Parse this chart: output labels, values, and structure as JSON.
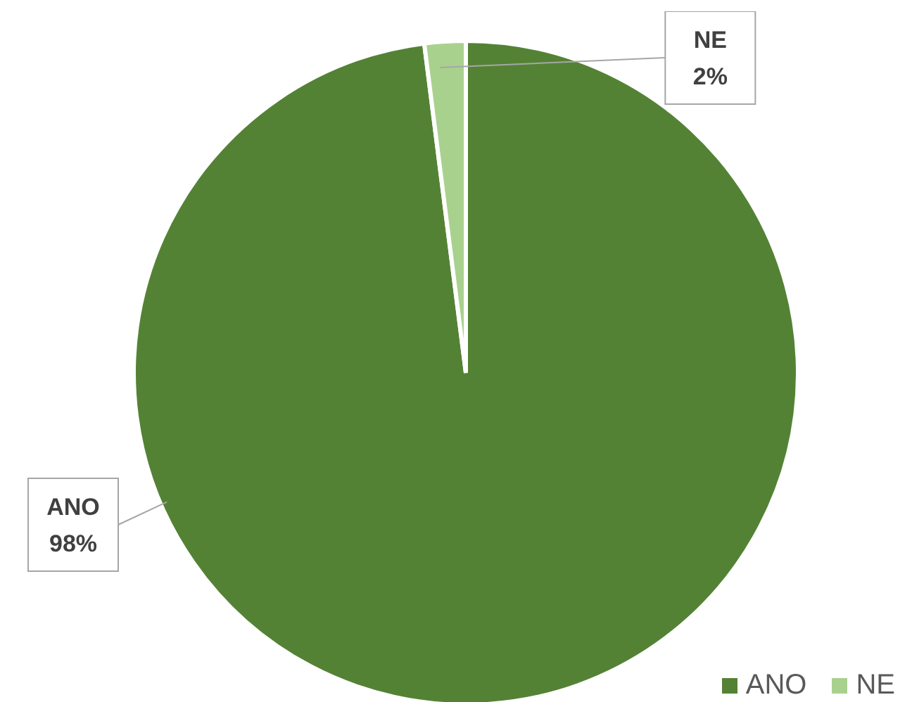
{
  "chart_data": {
    "type": "pie",
    "categories": [
      "ANO",
      "NE"
    ],
    "values": [
      98,
      2
    ],
    "colors": [
      "#548235",
      "#a9d18e"
    ],
    "value_labels": [
      "98%",
      "2%"
    ],
    "legend": "bottom right"
  }
}
